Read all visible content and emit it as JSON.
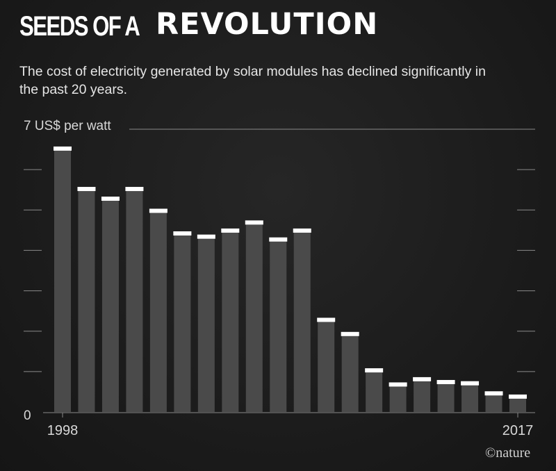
{
  "header": {
    "title_part1": "SEEDS OF A",
    "title_part2": "REVOLUTION",
    "subtitle": "The cost of electricity generated by solar modules has declined significantly in the past 20 years."
  },
  "credit": "©nature",
  "colors": {
    "background": "#1c1c1c",
    "bar": "#4a4a4a",
    "bar_cap": "#ffffff",
    "grid": "#8a8a8a",
    "text": "#ffffff"
  },
  "chart_data": {
    "type": "bar",
    "ylabel": "7 US$ per watt",
    "ylim": [
      0,
      7
    ],
    "y_ticks": [
      0,
      1,
      2,
      3,
      4,
      5,
      6,
      7
    ],
    "y_tick_labels": {
      "0": "0",
      "7": "7 US$ per watt"
    },
    "x_tick_labels": [
      "1998",
      "2017"
    ],
    "categories": [
      "1998",
      "1999",
      "2000",
      "2001",
      "2002",
      "2003",
      "2004",
      "2005",
      "2006",
      "2007",
      "2008",
      "2009",
      "2010",
      "2011",
      "2012",
      "2013",
      "2014",
      "2015",
      "2016",
      "2017"
    ],
    "values": [
      6.52,
      5.52,
      5.28,
      5.52,
      4.98,
      4.42,
      4.34,
      4.49,
      4.69,
      4.27,
      4.49,
      2.28,
      1.93,
      1.03,
      0.68,
      0.81,
      0.74,
      0.71,
      0.46,
      0.38
    ],
    "grid": "horizontal ticks at sides"
  }
}
